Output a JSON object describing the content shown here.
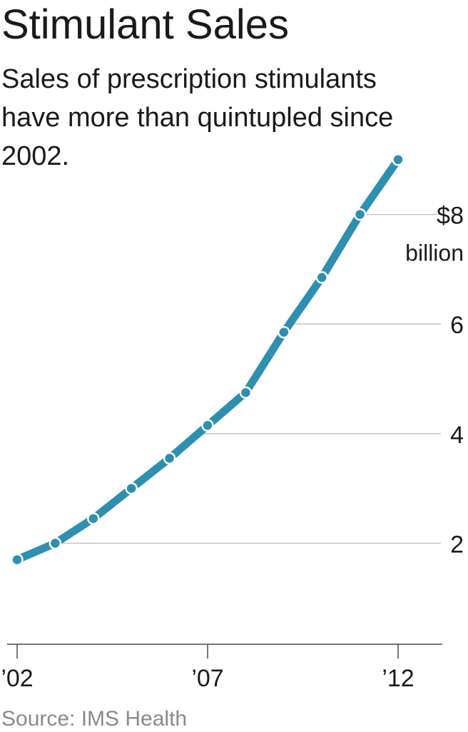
{
  "header": {
    "title": "Stimulant Sales",
    "subtitle": "Sales of prescription stimulants have more than quintupled since 2002."
  },
  "footer": {
    "source": "Source: IMS Health"
  },
  "colors": {
    "line": "#2e8fb0",
    "grid": "#bdbdbd",
    "axis": "#4a4a4a",
    "text": "#1a1a1a",
    "source": "#8a8a8a"
  },
  "chart_data": {
    "type": "line",
    "title": "Stimulant Sales",
    "subtitle": "Sales of prescription stimulants have more than quintupled since 2002.",
    "xlabel": "",
    "ylabel": "",
    "x": [
      2002,
      2003,
      2004,
      2005,
      2006,
      2007,
      2008,
      2009,
      2010,
      2011,
      2012
    ],
    "series": [
      {
        "name": "Sales ($ billion)",
        "values": [
          1.7,
          2.0,
          2.45,
          3.0,
          3.55,
          4.15,
          4.75,
          5.85,
          6.85,
          8.0,
          9.0
        ]
      }
    ],
    "xlim": [
      2002,
      2012.8
    ],
    "ylim": [
      0,
      9.4
    ],
    "y_ticks": [
      {
        "value": 2,
        "label": "2"
      },
      {
        "value": 4,
        "label": "4"
      },
      {
        "value": 6,
        "label": "6"
      },
      {
        "value": 8,
        "label": "$8",
        "sublabel": "billion"
      }
    ],
    "x_ticks": [
      {
        "value": 2002,
        "label": "’02"
      },
      {
        "value": 2007,
        "label": "’07"
      },
      {
        "value": 2012,
        "label": "’12"
      }
    ],
    "grid": true
  }
}
